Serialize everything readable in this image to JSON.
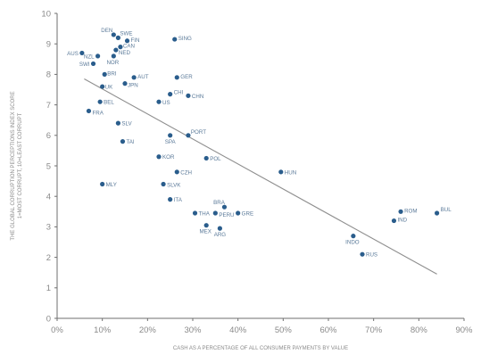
{
  "chart_data": {
    "type": "scatter",
    "xlabel": "CASH AS A PERCENTAGE OF ALL CONSUMER PAYMENTS BY VALUE",
    "ylabel_lines": [
      "THE GLOBAL CORRUPTION PERCEPTIONS INDEX SCORE",
      "1=MOST CORRUPT, 10=LEAST CORRUPT"
    ],
    "xlim": [
      0,
      90
    ],
    "ylim": [
      0,
      10
    ],
    "x_ticks": [
      0,
      10,
      20,
      30,
      40,
      50,
      60,
      70,
      80,
      90
    ],
    "x_tick_labels": [
      "0%",
      "10%",
      "20%",
      "30%",
      "40%",
      "50%",
      "60%",
      "70%",
      "80%",
      "90%"
    ],
    "y_ticks": [
      0,
      1,
      2,
      3,
      4,
      5,
      6,
      7,
      8,
      9,
      10
    ],
    "y_tick_labels": [
      "0",
      "1",
      "2",
      "3",
      "4",
      "5",
      "6",
      "7",
      "8",
      "9",
      "10"
    ],
    "grid": false,
    "legend": "none",
    "trendline": {
      "x": [
        6,
        84
      ],
      "y": [
        7.85,
        1.45
      ]
    },
    "points": [
      {
        "label": "DEN",
        "x": 12.5,
        "y": 9.3
      },
      {
        "label": "SWE",
        "x": 13.5,
        "y": 9.2
      },
      {
        "label": "FIN",
        "x": 15.5,
        "y": 9.1
      },
      {
        "label": "AUS",
        "x": 5.5,
        "y": 8.7
      },
      {
        "label": "NZL",
        "x": 9.0,
        "y": 8.6
      },
      {
        "label": "CAN",
        "x": 14.0,
        "y": 8.9
      },
      {
        "label": "NOR",
        "x": 12.5,
        "y": 8.6
      },
      {
        "label": "NED",
        "x": 13.0,
        "y": 8.8
      },
      {
        "label": "SWI",
        "x": 8.0,
        "y": 8.35
      },
      {
        "label": "SING",
        "x": 26.0,
        "y": 9.15
      },
      {
        "label": "BRI",
        "x": 10.5,
        "y": 8.0
      },
      {
        "label": "AUT",
        "x": 17.0,
        "y": 7.9
      },
      {
        "label": "JPN",
        "x": 15.0,
        "y": 7.7
      },
      {
        "label": "GER",
        "x": 26.5,
        "y": 7.9
      },
      {
        "label": "UK",
        "x": 10.0,
        "y": 7.6
      },
      {
        "label": "CHI",
        "x": 25.0,
        "y": 7.35
      },
      {
        "label": "CHN",
        "x": 29.0,
        "y": 7.3
      },
      {
        "label": "US",
        "x": 22.5,
        "y": 7.1
      },
      {
        "label": "BEL",
        "x": 9.5,
        "y": 7.1
      },
      {
        "label": "FRA",
        "x": 7.0,
        "y": 6.8
      },
      {
        "label": "SLV",
        "x": 13.5,
        "y": 6.4
      },
      {
        "label": "SPA",
        "x": 25.0,
        "y": 6.0
      },
      {
        "label": "PORT",
        "x": 29.0,
        "y": 6.0
      },
      {
        "label": "TAI",
        "x": 14.5,
        "y": 5.8
      },
      {
        "label": "KOR",
        "x": 22.5,
        "y": 5.3
      },
      {
        "label": "POL",
        "x": 33.0,
        "y": 5.25
      },
      {
        "label": "HUN",
        "x": 49.5,
        "y": 4.8
      },
      {
        "label": "CZH",
        "x": 26.5,
        "y": 4.8
      },
      {
        "label": "MLY",
        "x": 10.0,
        "y": 4.4
      },
      {
        "label": "SLVK",
        "x": 23.5,
        "y": 4.4
      },
      {
        "label": "ITA",
        "x": 25.0,
        "y": 3.9
      },
      {
        "label": "BRA",
        "x": 37.0,
        "y": 3.65
      },
      {
        "label": "THA",
        "x": 30.5,
        "y": 3.45
      },
      {
        "label": "PERU",
        "x": 35.0,
        "y": 3.45
      },
      {
        "label": "GRE",
        "x": 40.0,
        "y": 3.45
      },
      {
        "label": "MEX",
        "x": 33.0,
        "y": 3.05
      },
      {
        "label": "ARG",
        "x": 36.0,
        "y": 2.95
      },
      {
        "label": "INDO",
        "x": 65.5,
        "y": 2.7
      },
      {
        "label": "ROM",
        "x": 76.0,
        "y": 3.5
      },
      {
        "label": "IND",
        "x": 74.5,
        "y": 3.2
      },
      {
        "label": "BUL",
        "x": 84.0,
        "y": 3.45
      },
      {
        "label": "RUS",
        "x": 67.5,
        "y": 2.1
      }
    ]
  }
}
